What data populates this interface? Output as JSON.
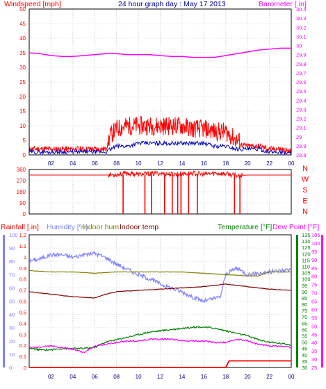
{
  "chart_data": [
    {
      "type": "line",
      "title": "24 hour graph day : May 17 2013",
      "left_axis_label": "Windspeed [mph]",
      "right_axis_label": "Barometer [.in]",
      "x_ticks": [
        "02",
        "04",
        "06",
        "08",
        "10",
        "12",
        "14",
        "16",
        "18",
        "20",
        "22",
        "00"
      ],
      "left_ticks": [
        "0",
        "5",
        "10",
        "15",
        "20",
        "25",
        "30",
        "35",
        "40",
        "45",
        "50"
      ],
      "right_ticks": [
        "28.8",
        "28.9",
        "29",
        "29.1",
        "29.2",
        "29.3",
        "29.4",
        "29.5",
        "29.6",
        "29.7",
        "29.8",
        "29.9",
        "30",
        "30.1",
        "30.2",
        "30.3",
        "30.4"
      ],
      "left_range": [
        0,
        50
      ],
      "right_range": [
        28.8,
        30.4
      ],
      "series": [
        {
          "color": "#ff0000",
          "role": "windspeed-gust",
          "x": [
            0,
            1,
            2,
            3,
            4,
            5,
            6,
            7,
            7.5,
            8,
            9,
            10,
            11,
            12,
            13,
            14,
            15,
            16,
            17,
            18,
            19,
            20,
            21,
            22,
            23,
            24
          ],
          "y": [
            2,
            2,
            2,
            2,
            2,
            2,
            2,
            2,
            6,
            8,
            9,
            9,
            9,
            9,
            9,
            9,
            8,
            8,
            7,
            7,
            4,
            3,
            3,
            2,
            2,
            1
          ]
        },
        {
          "color": "#0000c0",
          "role": "windspeed-average",
          "x": [
            0,
            1,
            2,
            3,
            4,
            5,
            6,
            7,
            8,
            9,
            10,
            11,
            12,
            13,
            14,
            15,
            16,
            17,
            18,
            19,
            20,
            21,
            22,
            23,
            24
          ],
          "y": [
            1,
            1,
            1,
            1,
            1,
            1,
            1,
            1,
            3,
            3,
            4,
            4,
            4,
            4,
            4,
            4,
            4,
            3,
            3,
            2,
            2,
            2,
            1,
            1,
            0.5
          ]
        },
        {
          "color": "#ff00ff",
          "role": "barometer",
          "x": [
            0,
            1,
            2,
            3,
            4,
            5,
            6,
            7,
            8,
            9,
            10,
            11,
            12,
            13,
            14,
            15,
            16,
            17,
            18,
            19,
            20,
            21,
            22,
            23,
            24
          ],
          "y": [
            29.92,
            29.91,
            29.89,
            29.88,
            29.88,
            29.89,
            29.9,
            29.91,
            29.91,
            29.9,
            29.9,
            29.9,
            29.89,
            29.88,
            29.88,
            29.87,
            29.87,
            29.87,
            29.89,
            29.91,
            29.93,
            29.95,
            29.96,
            29.97,
            29.97
          ]
        }
      ]
    },
    {
      "type": "scatter",
      "role": "wind-direction",
      "y_ticks": [
        "0",
        "90",
        "180",
        "270",
        "360"
      ],
      "y_range": [
        0,
        360
      ],
      "compass_labels": [
        "N",
        "W",
        "S",
        "E",
        "N"
      ],
      "x_ticks": [
        "02",
        "04",
        "06",
        "08",
        "10",
        "12",
        "14",
        "16",
        "18",
        "20",
        "22",
        "00"
      ],
      "series": [
        {
          "color": "#ff0000",
          "x": [
            0,
            2,
            4,
            6,
            7,
            8,
            9,
            10,
            11,
            12,
            13,
            14,
            15,
            16,
            17,
            18,
            19,
            20,
            22,
            24
          ],
          "y": [
            315,
            315,
            315,
            315,
            315,
            320,
            330,
            320,
            325,
            330,
            320,
            325,
            330,
            320,
            330,
            325,
            310,
            315,
            315,
            315
          ]
        }
      ],
      "north_dips_hours": [
        8.6,
        10.6,
        11.2,
        12.4,
        13.1,
        13.6,
        13.9,
        14.6,
        15.4,
        18.8,
        19.3
      ]
    },
    {
      "type": "line",
      "labels": [
        "Rainfall [.in]",
        "Humidity [%]",
        "Indoor hum",
        "Indoor temp",
        "Temperature [°F]",
        "Dew Point [°F]"
      ],
      "label_colors": [
        "#ff0000",
        "#8080ff",
        "#808000",
        "#800000",
        "#008000",
        "#ff00ff"
      ],
      "rain_ticks": [
        "0",
        "0.1",
        "0.2",
        "0.3",
        "0.4",
        "0.5",
        "0.6",
        "0.7",
        "0.8",
        "0.9",
        "1",
        "1.1",
        "1.2"
      ],
      "humidity_ticks": [
        "0",
        "10",
        "20",
        "30",
        "40",
        "50",
        "60",
        "70",
        "80",
        "90",
        "100"
      ],
      "temperature_ticks": [
        "30",
        "35",
        "40",
        "45",
        "50",
        "55",
        "60",
        "65",
        "70",
        "75",
        "80",
        "85",
        "90",
        "95",
        "100",
        "105",
        "110",
        "115",
        "120",
        "125",
        "130",
        "135"
      ],
      "dewpoint_ticks": [
        "25",
        "30",
        "35",
        "40",
        "45",
        "50",
        "55",
        "60",
        "65",
        "70",
        "75",
        "80",
        "85",
        "90",
        "95",
        "100",
        "105"
      ],
      "x_ticks": [
        "02",
        "04",
        "06",
        "08",
        "10",
        "12",
        "14",
        "16",
        "18",
        "20",
        "22",
        "00"
      ],
      "series": [
        {
          "color": "#8080ff",
          "role": "humidity",
          "x": [
            0,
            1,
            2,
            3,
            4,
            5,
            6,
            7,
            8,
            9,
            10,
            11,
            12,
            13,
            14,
            15,
            16,
            17,
            17.5,
            18,
            19,
            20,
            21,
            22,
            23,
            24
          ],
          "y": [
            80,
            82,
            85,
            85,
            83,
            85,
            86,
            83,
            78,
            74,
            70,
            67,
            63,
            60,
            57,
            53,
            50,
            52,
            53,
            70,
            75,
            70,
            71,
            72,
            73,
            74
          ]
        },
        {
          "color": "#800000",
          "role": "indoor-temp",
          "x": [
            0,
            2,
            4,
            6,
            7,
            8,
            10,
            12,
            14,
            16,
            18,
            19,
            20,
            22,
            24
          ],
          "y": [
            90,
            88,
            86,
            85,
            88,
            90,
            91,
            92,
            93,
            94,
            96,
            95,
            94,
            92,
            91
          ]
        },
        {
          "color": "#808000",
          "role": "indoor-hum",
          "x": [
            0,
            2,
            4,
            6,
            8,
            10,
            12,
            14,
            16,
            18,
            20,
            21,
            22,
            24
          ],
          "y": [
            73,
            72,
            72,
            71,
            72,
            72,
            72,
            72,
            71,
            70,
            69,
            69,
            72,
            72
          ]
        },
        {
          "color": "#008000",
          "role": "temperature",
          "x": [
            0,
            1,
            2,
            3,
            4,
            5,
            6,
            7,
            8,
            9,
            10,
            11,
            12,
            13,
            14,
            15,
            16,
            17,
            18,
            19,
            20,
            21,
            22,
            23,
            24
          ],
          "y": [
            45,
            44,
            44,
            45,
            45,
            45,
            46,
            50,
            52,
            54,
            56,
            58,
            59,
            60,
            61,
            62,
            62,
            61,
            59,
            57,
            55,
            52,
            50,
            49,
            48
          ]
        },
        {
          "color": "#ff00ff",
          "role": "dew-point",
          "x": [
            0,
            1,
            2,
            3,
            4,
            5,
            6,
            7,
            8,
            9,
            10,
            11,
            12,
            13,
            14,
            15,
            16,
            17,
            18,
            19,
            20,
            21,
            22,
            23,
            24
          ],
          "y": [
            37,
            37,
            38,
            37,
            36,
            34,
            38,
            39,
            40,
            41,
            41,
            42,
            42,
            42,
            41,
            41,
            41,
            40,
            40,
            42,
            41,
            39,
            38,
            38,
            37
          ]
        },
        {
          "color": "#ff0000",
          "role": "rainfall",
          "x": [
            0,
            18,
            18.3,
            24
          ],
          "y": [
            0,
            0,
            0.06,
            0.06
          ]
        }
      ]
    }
  ]
}
